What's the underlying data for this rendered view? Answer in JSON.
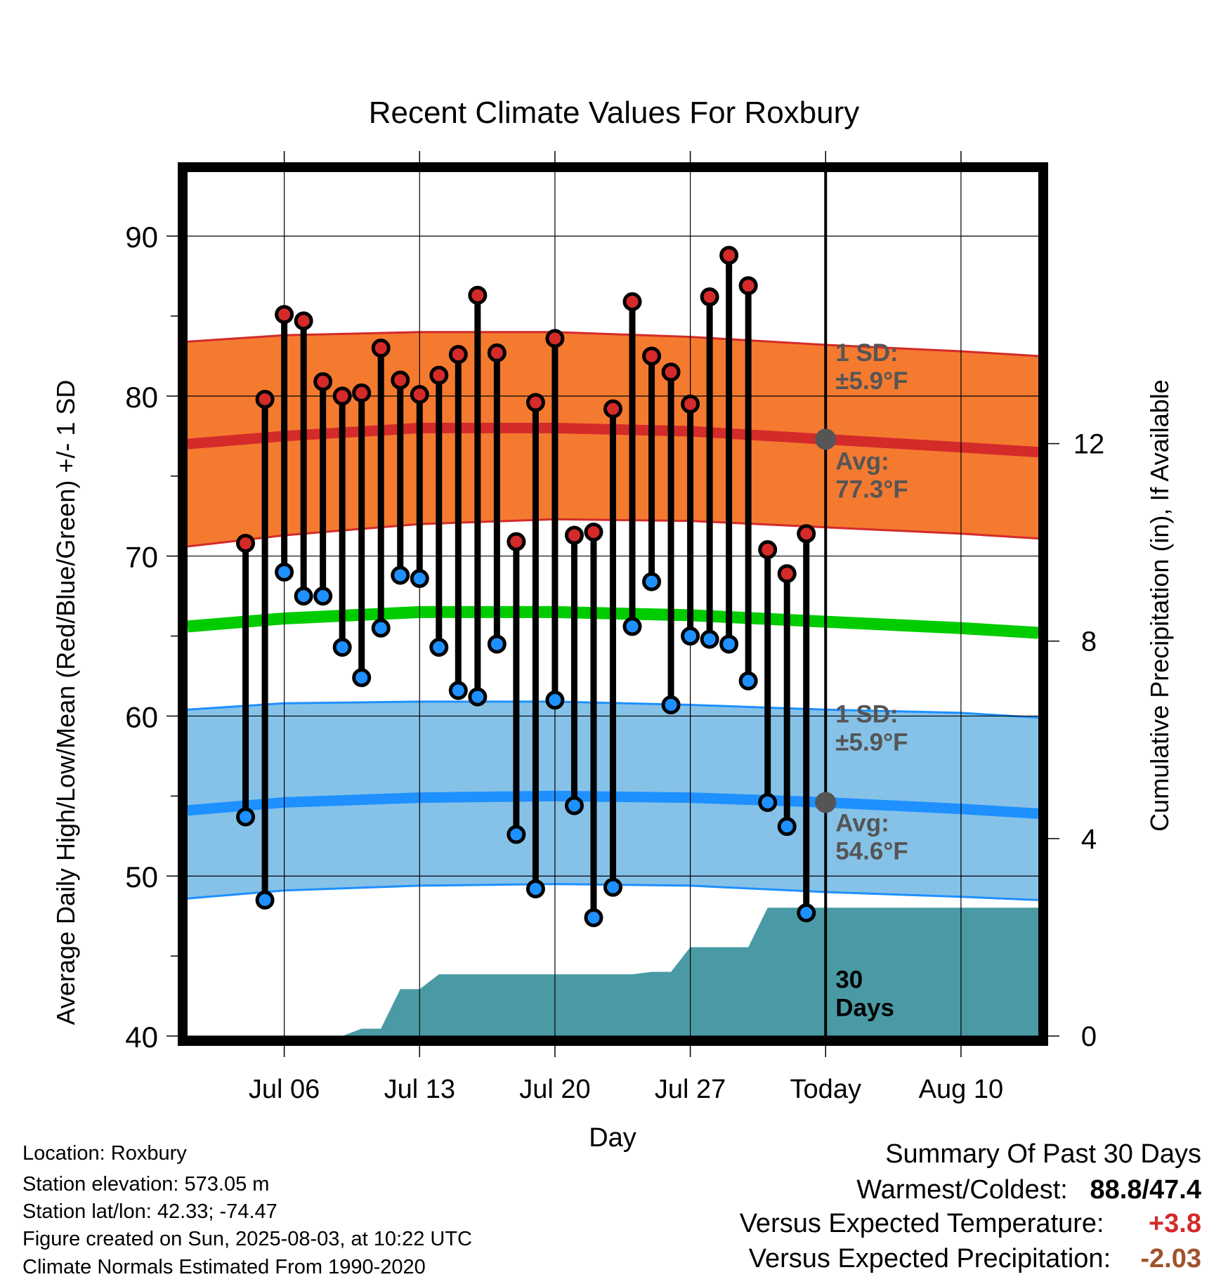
{
  "chart_data": {
    "type": "line",
    "title": "Recent Climate Values For Roxbury",
    "xlabel": "Day",
    "ylabel_left": "Average Daily High/Low/Mean (Red/Blue/Green) +/- 1 SD",
    "ylabel_right": "Cumulative Precipitation (in), If Available",
    "ylim_left": [
      40,
      94
    ],
    "ylim_right": [
      0,
      17.5
    ],
    "yticks_left": [
      "40",
      "50",
      "60",
      "70",
      "80",
      "90"
    ],
    "yticks_right": [
      "0",
      "4",
      "8",
      "12"
    ],
    "xlim": [
      "2025-07-01",
      "2025-08-14"
    ],
    "xticks": [
      {
        "date": "2025-07-06",
        "label": "Jul 06"
      },
      {
        "date": "2025-07-13",
        "label": "Jul 13"
      },
      {
        "date": "2025-07-20",
        "label": "Jul 20"
      },
      {
        "date": "2025-07-27",
        "label": "Jul 27"
      },
      {
        "date": "2025-08-03",
        "label": "Today"
      },
      {
        "date": "2025-08-10",
        "label": "Aug 10"
      }
    ],
    "today": "2025-08-03",
    "grid": true,
    "observations": {
      "dates": [
        "2025-07-04",
        "2025-07-05",
        "2025-07-06",
        "2025-07-07",
        "2025-07-08",
        "2025-07-09",
        "2025-07-10",
        "2025-07-11",
        "2025-07-12",
        "2025-07-13",
        "2025-07-14",
        "2025-07-15",
        "2025-07-16",
        "2025-07-17",
        "2025-07-18",
        "2025-07-19",
        "2025-07-20",
        "2025-07-21",
        "2025-07-22",
        "2025-07-23",
        "2025-07-24",
        "2025-07-25",
        "2025-07-26",
        "2025-07-27",
        "2025-07-28",
        "2025-07-29",
        "2025-07-30",
        "2025-07-31",
        "2025-08-01",
        "2025-08-02"
      ],
      "highs": [
        70.8,
        79.8,
        85.1,
        84.7,
        80.9,
        80.0,
        80.2,
        83.0,
        81.0,
        80.1,
        81.3,
        82.6,
        86.3,
        82.7,
        70.9,
        79.6,
        83.6,
        71.3,
        71.5,
        79.2,
        85.9,
        82.5,
        81.5,
        79.5,
        86.2,
        88.8,
        86.9,
        70.4,
        68.9,
        71.4
      ],
      "lows": [
        53.7,
        48.5,
        69.0,
        67.5,
        67.5,
        64.3,
        62.4,
        65.5,
        68.8,
        68.6,
        64.3,
        61.6,
        61.2,
        64.5,
        52.6,
        49.2,
        61.0,
        54.4,
        47.4,
        49.3,
        65.6,
        68.4,
        60.7,
        65.0,
        64.8,
        64.5,
        62.2,
        54.6,
        53.1,
        47.7
      ]
    },
    "normals": {
      "dates": [
        "2025-07-01",
        "2025-07-06",
        "2025-07-13",
        "2025-07-20",
        "2025-07-27",
        "2025-08-03",
        "2025-08-10",
        "2025-08-14"
      ],
      "high_avg": [
        77.0,
        77.5,
        78.0,
        78.0,
        77.8,
        77.3,
        76.8,
        76.5
      ],
      "high_upper": [
        83.4,
        83.8,
        84.0,
        84.0,
        83.7,
        83.2,
        82.8,
        82.5
      ],
      "high_lower": [
        70.6,
        71.3,
        72.0,
        72.3,
        72.2,
        71.8,
        71.4,
        71.1
      ],
      "mean_avg": [
        65.6,
        66.1,
        66.5,
        66.5,
        66.3,
        65.9,
        65.5,
        65.2
      ],
      "low_avg": [
        54.1,
        54.6,
        54.9,
        55.0,
        54.9,
        54.6,
        54.2,
        53.9
      ],
      "low_upper": [
        60.4,
        60.8,
        60.9,
        60.9,
        60.7,
        60.4,
        60.2,
        59.9
      ],
      "low_lower": [
        48.6,
        49.1,
        49.4,
        49.5,
        49.4,
        49.0,
        48.7,
        48.5
      ]
    },
    "precipitation": {
      "dates": [
        "2025-07-01",
        "2025-07-09",
        "2025-07-10",
        "2025-07-11",
        "2025-07-12",
        "2025-07-13",
        "2025-07-14",
        "2025-07-15",
        "2025-07-16",
        "2025-07-17",
        "2025-07-18",
        "2025-07-19",
        "2025-07-20",
        "2025-07-21",
        "2025-07-22",
        "2025-07-23",
        "2025-07-24",
        "2025-07-25",
        "2025-07-26",
        "2025-07-27",
        "2025-07-28",
        "2025-07-29",
        "2025-07-30",
        "2025-07-31",
        "2025-08-01",
        "2025-08-02",
        "2025-08-03",
        "2025-08-14"
      ],
      "cumulative": [
        0,
        0,
        0.15,
        0.15,
        0.95,
        0.95,
        1.25,
        1.25,
        1.25,
        1.25,
        1.25,
        1.25,
        1.25,
        1.25,
        1.25,
        1.25,
        1.25,
        1.3,
        1.3,
        1.8,
        1.8,
        1.8,
        1.8,
        2.6,
        2.6,
        2.6,
        2.6,
        2.6
      ]
    },
    "annotations": {
      "high_sd": [
        "1 SD:",
        "±5.9°F"
      ],
      "high_avg": [
        "Avg:",
        "77.3°F"
      ],
      "low_sd": [
        "1 SD:",
        "±5.9°F"
      ],
      "low_avg": [
        "Avg:",
        "54.6°F"
      ],
      "precip_days": [
        "30",
        "Days"
      ]
    },
    "colors": {
      "high": "#d42a2a",
      "high_band": "#f47a30",
      "mean": "#00cc00",
      "low": "#1e90ff",
      "low_band": "#86c2e8",
      "precip": "#4a9aa5",
      "annotation": "#555555"
    }
  },
  "info": {
    "location": "Location: Roxbury",
    "elevation": "Station elevation: 573.05 m",
    "latlon": "Station lat/lon: 42.33; -74.47",
    "created": "Figure created on Sun, 2025-08-03, at 10:22 UTC",
    "normals": "Climate Normals Estimated From 1990-2020"
  },
  "summary": {
    "heading": "Summary Of Past 30 Days",
    "warm_label": "Warmest/Coldest:",
    "warm_value": "88.8/47.4",
    "temp_label": "Versus Expected Temperature:",
    "temp_value": "+3.8",
    "prec_label": "Versus Expected Precipitation:",
    "prec_value": "-2.03"
  }
}
